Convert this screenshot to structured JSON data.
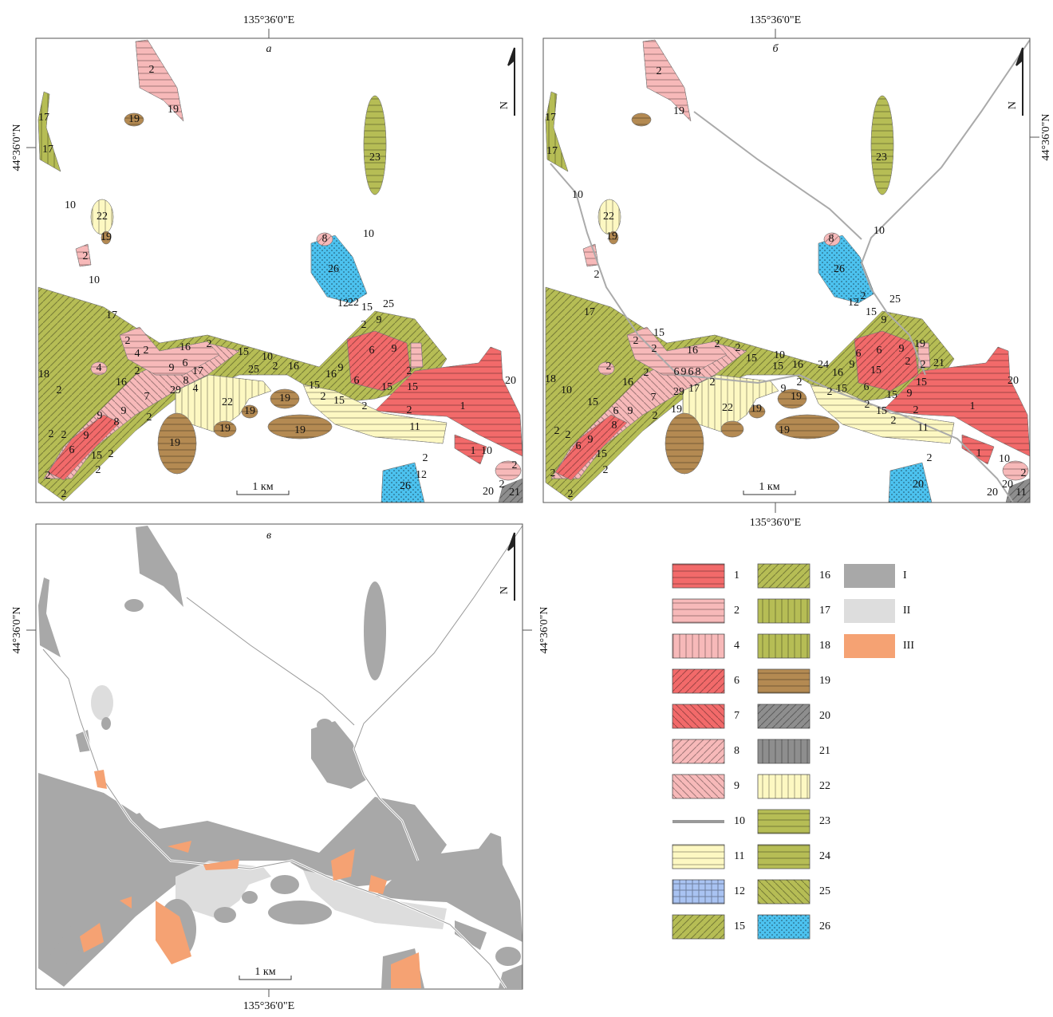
{
  "panels": [
    {
      "letter": "а",
      "scale": "1 км",
      "north": "N",
      "labels": [
        "2",
        "19",
        "19",
        "17",
        "17",
        "23",
        "10",
        "22",
        "19",
        "2",
        "10",
        "10",
        "8",
        "26",
        "12",
        "22",
        "15",
        "25",
        "9",
        "2",
        "17",
        "2",
        "4",
        "2",
        "16",
        "2",
        "15",
        "10",
        "25",
        "2",
        "16",
        "6",
        "9",
        "2",
        "9",
        "16",
        "6",
        "15",
        "15",
        "18",
        "4",
        "2",
        "16",
        "9",
        "6",
        "17",
        "8",
        "29",
        "4",
        "2",
        "22",
        "19",
        "19",
        "15",
        "2",
        "15",
        "2",
        "2",
        "1",
        "11",
        "19",
        "19",
        "19",
        "2",
        "7",
        "9",
        "8",
        "9",
        "9",
        "2",
        "2",
        "6",
        "15",
        "2",
        "2",
        "2",
        "2",
        "2",
        "12",
        "26",
        "1",
        "10",
        "2",
        "2",
        "20",
        "21",
        "20"
      ]
    },
    {
      "letter": "б",
      "scale": "1 км",
      "north": "N",
      "labels": [
        "2",
        "19",
        "17",
        "17",
        "23",
        "10",
        "22",
        "19",
        "8",
        "10",
        "26",
        "2",
        "17",
        "12",
        "2",
        "15",
        "25",
        "9",
        "15",
        "2",
        "2",
        "16",
        "2",
        "2",
        "15",
        "10",
        "15",
        "16",
        "24",
        "16",
        "9",
        "6",
        "6",
        "9",
        "19",
        "2",
        "2",
        "21",
        "15",
        "2",
        "18",
        "10",
        "16",
        "2",
        "6",
        "9",
        "6",
        "8",
        "2",
        "17",
        "29",
        "7",
        "2",
        "9",
        "19",
        "22",
        "19",
        "19",
        "2",
        "6",
        "15",
        "2",
        "15",
        "15",
        "9",
        "2",
        "15",
        "2",
        "2",
        "1",
        "11",
        "19",
        "15",
        "6",
        "9",
        "8",
        "9",
        "2",
        "2",
        "15",
        "6",
        "2",
        "2",
        "2",
        "20",
        "2",
        "1",
        "10",
        "2",
        "20",
        "20",
        "11",
        "20"
      ]
    },
    {
      "letter": "в",
      "scale": "1 км",
      "north": "N"
    }
  ],
  "coordinates": [
    "135°36'0\"E",
    "135°36'0\"E",
    "135°36'0\"E",
    "135°36'0\"E",
    "44°36'0\"N",
    "44°36'0\"N",
    "44°36'0\"N",
    "44°36'0\"N"
  ],
  "legend": {
    "units": [
      {
        "label": "1",
        "color": "#f26a6a"
      },
      {
        "label": "2",
        "color": "#f7b9b9"
      },
      {
        "label": "4",
        "color": "#f7b9b9"
      },
      {
        "label": "6",
        "color": "#f26a6a"
      },
      {
        "label": "7",
        "color": "#f26a6a"
      },
      {
        "label": "8",
        "color": "#f7b9b9"
      },
      {
        "label": "9",
        "color": "#f7b9b9"
      },
      {
        "label": "10",
        "color": "#999999"
      },
      {
        "label": "11",
        "color": "#fdf8c2"
      },
      {
        "label": "12",
        "color": "#a9c3f2"
      },
      {
        "label": "15",
        "color": "#b6bd55"
      },
      {
        "label": "16",
        "color": "#b6bd55"
      },
      {
        "label": "17",
        "color": "#b6bd55"
      },
      {
        "label": "18",
        "color": "#b6bd55"
      },
      {
        "label": "19",
        "color": "#b48a52"
      },
      {
        "label": "20",
        "color": "#8e8e8e"
      },
      {
        "label": "21",
        "color": "#8e8e8e"
      },
      {
        "label": "22",
        "color": "#fdf8c2"
      },
      {
        "label": "23",
        "color": "#b6bd55"
      },
      {
        "label": "24",
        "color": "#b6bd55"
      },
      {
        "label": "25",
        "color": "#b6bd55"
      },
      {
        "label": "26",
        "color": "#4cc2ef"
      }
    ],
    "classes": [
      {
        "label": "I",
        "color": "#a8a8a8"
      },
      {
        "label": "II",
        "color": "#dddddd"
      },
      {
        "label": "III",
        "color": "#f5a273"
      }
    ]
  }
}
